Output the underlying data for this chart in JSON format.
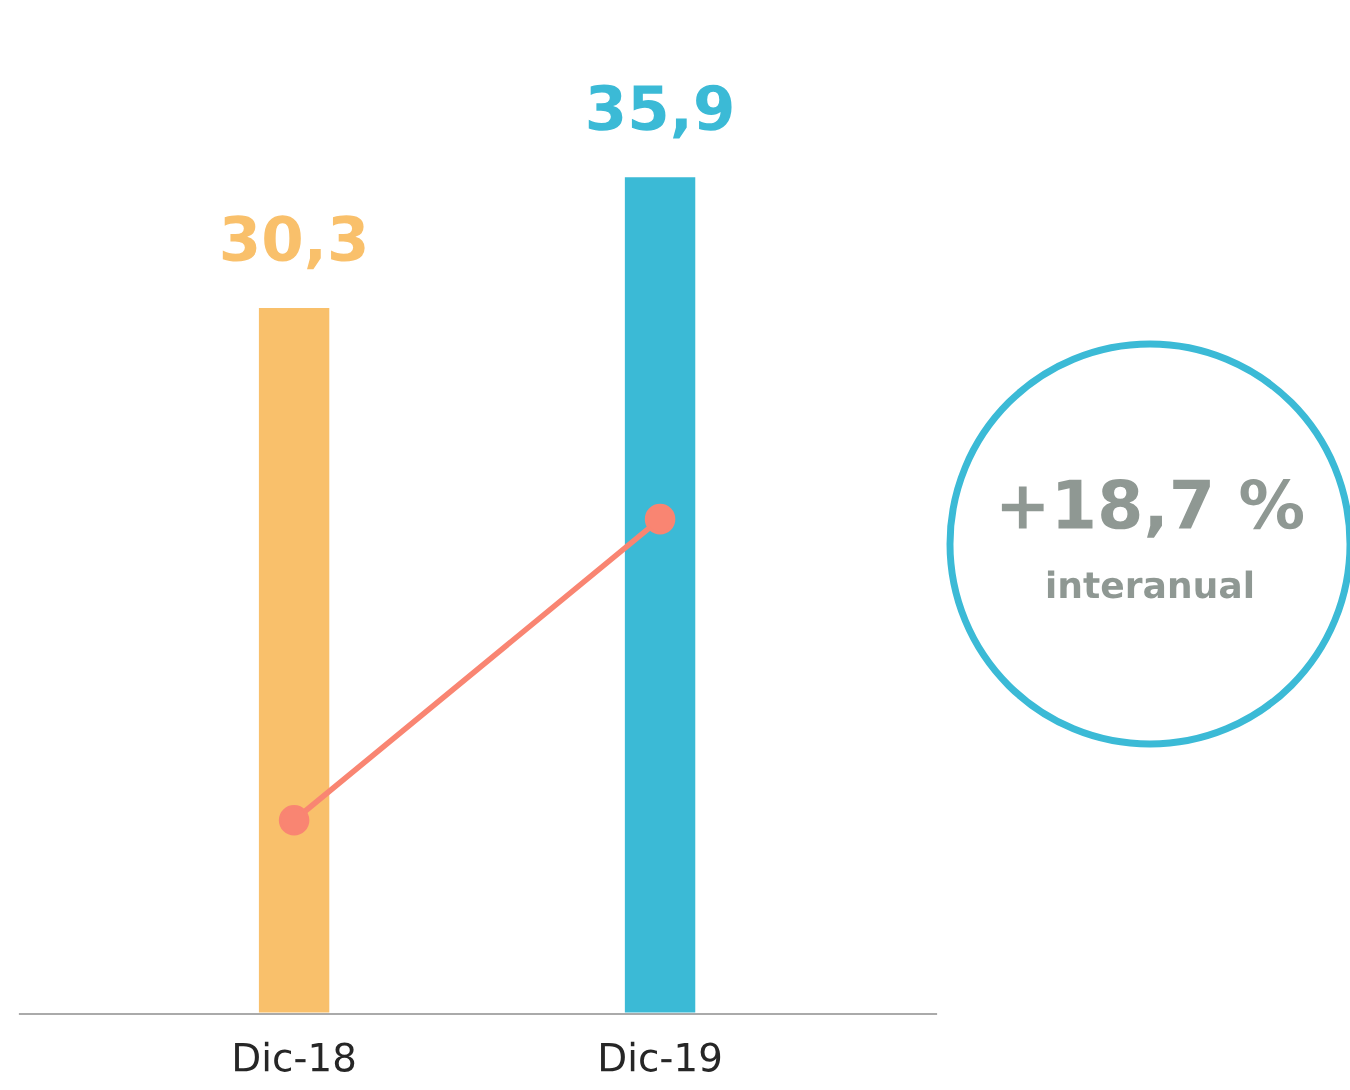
{
  "chart_data": {
    "type": "bar",
    "categories": [
      "Dic-18",
      "Dic-19"
    ],
    "series": [
      {
        "colors": [
          "#f9c06b",
          "#3bbad6"
        ],
        "values": [
          30.3,
          35.9
        ],
        "value_labels": [
          "30,3",
          "35,9"
        ]
      },
      {
        "type": "line",
        "color": "#f98572",
        "values": [
          8.3,
          21.2
        ]
      }
    ],
    "marker": "circle",
    "grid": false,
    "legend": false,
    "annotations": [
      "+18,7 %",
      "interanual"
    ]
  }
}
